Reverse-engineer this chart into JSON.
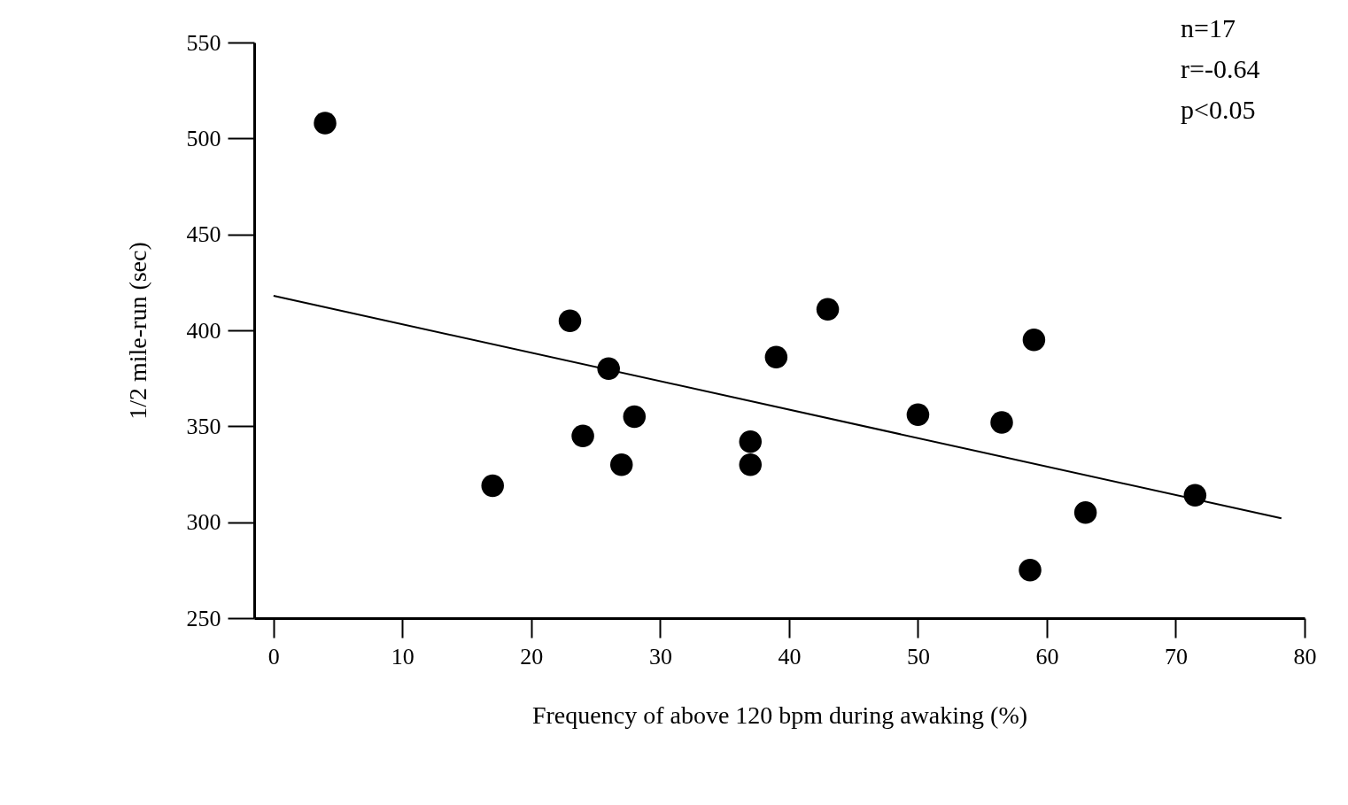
{
  "chart_data": {
    "type": "scatter",
    "xlabel": "Frequency of above 120 bpm during awaking (%)",
    "ylabel": "1/2 mile-run (sec)",
    "xlim": [
      -1.5,
      80
    ],
    "ylim": [
      250,
      550
    ],
    "xticks": [
      0,
      10,
      20,
      30,
      40,
      50,
      60,
      70,
      80
    ],
    "yticks": [
      250,
      300,
      350,
      400,
      450,
      500,
      550
    ],
    "annotations": [
      "n=17",
      "r=-0.64",
      "p<0.05"
    ],
    "series": [
      {
        "type": "scatter",
        "marker": "circle",
        "color": "#000000",
        "x": [
          4,
          17,
          23,
          24,
          26,
          27,
          28,
          37,
          37,
          39,
          43,
          50,
          56.5,
          59,
          58.7,
          63,
          71.5
        ],
        "values": [
          508,
          319,
          405,
          345,
          380,
          330,
          355,
          342,
          330,
          386,
          411,
          356,
          352,
          395,
          275,
          305,
          314
        ]
      },
      {
        "type": "line",
        "color": "#000000",
        "x": [
          0,
          78.2
        ],
        "values": [
          418,
          302
        ]
      }
    ]
  }
}
